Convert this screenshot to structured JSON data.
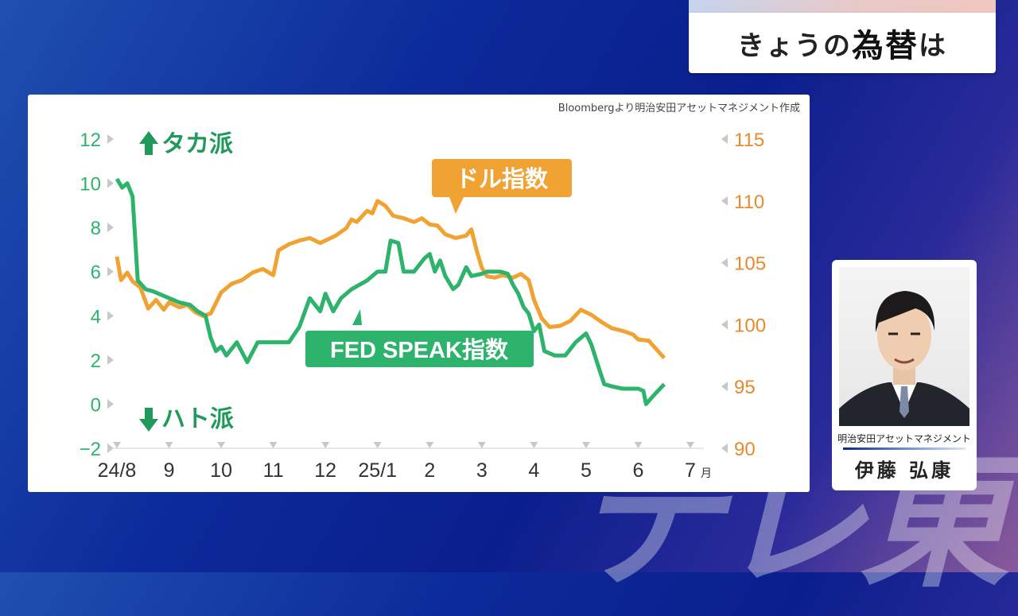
{
  "header": {
    "title_part1": "きょうの",
    "title_part2": "為替",
    "title_part3": "は"
  },
  "watermark": "テレ東",
  "chart_data": {
    "type": "line",
    "source": "Bloombergより明治安田アセットマネジメント作成",
    "x_tick_labels": [
      "24/8",
      "9",
      "10",
      "11",
      "12",
      "25/1",
      "2",
      "3",
      "4",
      "5",
      "6",
      "7"
    ],
    "x_unit": "月",
    "left_axis": {
      "ticks": [
        "12",
        "10",
        "8",
        "6",
        "4",
        "2",
        "0",
        "−2"
      ],
      "range": [
        -2,
        12
      ]
    },
    "right_axis": {
      "ticks": [
        "115",
        "110",
        "105",
        "100",
        "95",
        "90"
      ],
      "range": [
        90,
        115
      ]
    },
    "up_label": "タカ派",
    "down_label": "ハト派",
    "series": [
      {
        "name": "FED SPEAK指数",
        "axis": "left",
        "color": "#2db36b",
        "points": [
          [
            0.0,
            10.2
          ],
          [
            0.1,
            9.8
          ],
          [
            0.2,
            10.0
          ],
          [
            0.3,
            9.4
          ],
          [
            0.4,
            5.6
          ],
          [
            0.55,
            5.2
          ],
          [
            0.7,
            5.1
          ],
          [
            0.9,
            4.9
          ],
          [
            1.0,
            4.8
          ],
          [
            1.2,
            4.6
          ],
          [
            1.4,
            4.5
          ],
          [
            1.55,
            4.2
          ],
          [
            1.7,
            4.0
          ],
          [
            1.8,
            3.0
          ],
          [
            1.9,
            2.4
          ],
          [
            2.0,
            2.6
          ],
          [
            2.1,
            2.2
          ],
          [
            2.3,
            2.8
          ],
          [
            2.5,
            1.9
          ],
          [
            2.7,
            2.8
          ],
          [
            3.0,
            2.8
          ],
          [
            3.3,
            2.8
          ],
          [
            3.5,
            3.5
          ],
          [
            3.7,
            4.8
          ],
          [
            3.9,
            4.2
          ],
          [
            4.0,
            5.0
          ],
          [
            4.15,
            4.2
          ],
          [
            4.3,
            4.8
          ],
          [
            4.5,
            5.2
          ],
          [
            4.8,
            5.6
          ],
          [
            5.0,
            6.0
          ],
          [
            5.15,
            6.0
          ],
          [
            5.25,
            7.4
          ],
          [
            5.4,
            7.3
          ],
          [
            5.5,
            6.0
          ],
          [
            5.7,
            6.0
          ],
          [
            5.9,
            6.6
          ],
          [
            6.0,
            6.8
          ],
          [
            6.1,
            6.0
          ],
          [
            6.2,
            6.5
          ],
          [
            6.3,
            5.8
          ],
          [
            6.45,
            5.2
          ],
          [
            6.55,
            5.4
          ],
          [
            6.7,
            6.2
          ],
          [
            6.8,
            5.8
          ],
          [
            7.0,
            5.9
          ],
          [
            7.1,
            6.0
          ],
          [
            7.35,
            6.0
          ],
          [
            7.5,
            5.9
          ],
          [
            7.6,
            5.4
          ],
          [
            7.7,
            5.0
          ],
          [
            7.8,
            4.4
          ],
          [
            7.9,
            4.1
          ],
          [
            8.0,
            3.3
          ],
          [
            8.1,
            3.6
          ],
          [
            8.2,
            2.4
          ],
          [
            8.4,
            2.2
          ],
          [
            8.6,
            2.2
          ],
          [
            8.8,
            2.8
          ],
          [
            9.0,
            3.2
          ],
          [
            9.1,
            2.7
          ],
          [
            9.25,
            1.6
          ],
          [
            9.35,
            0.9
          ],
          [
            9.5,
            0.8
          ],
          [
            9.7,
            0.7
          ],
          [
            9.85,
            0.7
          ],
          [
            10.0,
            0.7
          ],
          [
            10.1,
            0.6
          ],
          [
            10.15,
            0.0
          ],
          [
            10.3,
            0.4
          ],
          [
            10.5,
            0.9
          ]
        ]
      },
      {
        "name": "ドル指数",
        "axis": "right",
        "color": "#f0a232",
        "points": [
          [
            0.0,
            105.5
          ],
          [
            0.08,
            103.6
          ],
          [
            0.2,
            104.2
          ],
          [
            0.3,
            103.5
          ],
          [
            0.45,
            103.0
          ],
          [
            0.6,
            101.3
          ],
          [
            0.75,
            102.0
          ],
          [
            0.9,
            101.2
          ],
          [
            1.0,
            101.8
          ],
          [
            1.2,
            101.4
          ],
          [
            1.35,
            101.6
          ],
          [
            1.5,
            101.0
          ],
          [
            1.65,
            100.7
          ],
          [
            1.8,
            100.9
          ],
          [
            2.0,
            102.6
          ],
          [
            2.2,
            103.3
          ],
          [
            2.4,
            103.6
          ],
          [
            2.6,
            104.2
          ],
          [
            2.8,
            104.5
          ],
          [
            3.0,
            104.0
          ],
          [
            3.1,
            106.0
          ],
          [
            3.3,
            106.5
          ],
          [
            3.5,
            106.8
          ],
          [
            3.7,
            107.0
          ],
          [
            3.9,
            106.6
          ],
          [
            4.0,
            106.8
          ],
          [
            4.2,
            107.2
          ],
          [
            4.4,
            107.8
          ],
          [
            4.5,
            108.5
          ],
          [
            4.6,
            108.3
          ],
          [
            4.8,
            109.2
          ],
          [
            4.9,
            109.0
          ],
          [
            5.0,
            110.0
          ],
          [
            5.15,
            109.6
          ],
          [
            5.3,
            108.8
          ],
          [
            5.5,
            108.6
          ],
          [
            5.7,
            108.3
          ],
          [
            5.85,
            108.6
          ],
          [
            6.0,
            108.1
          ],
          [
            6.15,
            108.0
          ],
          [
            6.3,
            107.3
          ],
          [
            6.5,
            107.0
          ],
          [
            6.7,
            107.2
          ],
          [
            6.8,
            107.7
          ],
          [
            6.9,
            106.0
          ],
          [
            7.0,
            104.6
          ],
          [
            7.1,
            103.9
          ],
          [
            7.25,
            103.8
          ],
          [
            7.4,
            104.0
          ],
          [
            7.6,
            103.8
          ],
          [
            7.75,
            104.1
          ],
          [
            7.9,
            103.6
          ],
          [
            8.0,
            102.0
          ],
          [
            8.15,
            100.5
          ],
          [
            8.3,
            99.8
          ],
          [
            8.5,
            99.9
          ],
          [
            8.7,
            100.3
          ],
          [
            8.9,
            101.2
          ],
          [
            9.1,
            100.8
          ],
          [
            9.3,
            100.2
          ],
          [
            9.5,
            99.7
          ],
          [
            9.7,
            99.5
          ],
          [
            9.9,
            99.2
          ],
          [
            10.0,
            98.8
          ],
          [
            10.2,
            98.7
          ],
          [
            10.35,
            98.0
          ],
          [
            10.5,
            97.3
          ]
        ]
      }
    ],
    "series_labels": {
      "green": "FED SPEAK指数",
      "orange": "ドル指数"
    }
  },
  "person": {
    "company": "明治安田アセットマネジメント",
    "name": "伊藤 弘康"
  }
}
